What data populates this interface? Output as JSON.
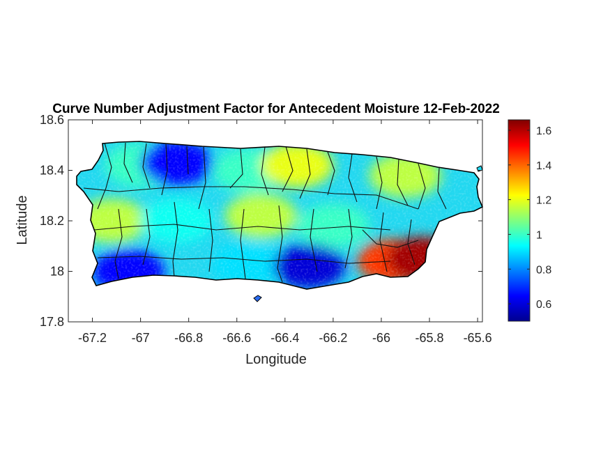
{
  "figure": {
    "title": "Curve Number Adjustment Factor for Antecedent Moisture 12-Feb-2022",
    "xlabel": "Longitude",
    "ylabel": "Latitude"
  },
  "map_data": {
    "type": "heatmap",
    "region": "Puerto Rico",
    "variable": "Curve Number Adjustment Factor",
    "date": "12-Feb-2022",
    "xlim": [
      -67.3,
      -65.58
    ],
    "ylim": [
      17.8,
      18.6
    ],
    "x_ticks": [
      "-67.2",
      "-67",
      "-66.8",
      "-66.6",
      "-66.4",
      "-66.2",
      "-66",
      "-65.8",
      "-65.6"
    ],
    "y_ticks": [
      "18.6",
      "18.4",
      "18.2",
      "18",
      "17.8"
    ],
    "x_tick_values": [
      -67.2,
      -67.0,
      -66.8,
      -66.6,
      -66.4,
      -66.2,
      -66.0,
      -65.8,
      -65.6
    ],
    "y_tick_values": [
      18.6,
      18.4,
      18.2,
      18.0,
      17.8
    ],
    "colormap": "jet",
    "colorbar": {
      "min": 0.5,
      "max": 1.66,
      "ticks": [
        "1.6",
        "1.4",
        "1.2",
        "1",
        "0.8",
        "0.6"
      ],
      "tick_values": [
        1.6,
        1.4,
        1.2,
        1.0,
        0.8,
        0.6
      ]
    },
    "regional_values": [
      {
        "area": "northwest",
        "lon": -67.0,
        "lat": 18.42,
        "value": 1.0
      },
      {
        "area": "north-central west",
        "lon": -66.85,
        "lat": 18.43,
        "value": 0.65
      },
      {
        "area": "north-central",
        "lon": -66.55,
        "lat": 18.4,
        "value": 1.0
      },
      {
        "area": "north-central east",
        "lon": -66.35,
        "lat": 18.42,
        "value": 1.2
      },
      {
        "area": "northeast",
        "lon": -65.9,
        "lat": 18.38,
        "value": 1.15
      },
      {
        "area": "west",
        "lon": -67.12,
        "lat": 18.2,
        "value": 1.15
      },
      {
        "area": "interior west",
        "lon": -66.85,
        "lat": 18.2,
        "value": 0.95
      },
      {
        "area": "interior central",
        "lon": -66.5,
        "lat": 18.22,
        "value": 1.15
      },
      {
        "area": "interior east",
        "lon": -66.2,
        "lat": 18.18,
        "value": 1.0
      },
      {
        "area": "southwest",
        "lon": -67.05,
        "lat": 18.0,
        "value": 0.65
      },
      {
        "area": "south-central",
        "lon": -66.55,
        "lat": 18.03,
        "value": 0.9
      },
      {
        "area": "south",
        "lon": -66.3,
        "lat": 18.02,
        "value": 0.6
      },
      {
        "area": "southeast",
        "lon": -65.95,
        "lat": 18.04,
        "value": 1.45
      },
      {
        "area": "east coast",
        "lon": -65.83,
        "lat": 18.05,
        "value": 1.62
      }
    ]
  }
}
